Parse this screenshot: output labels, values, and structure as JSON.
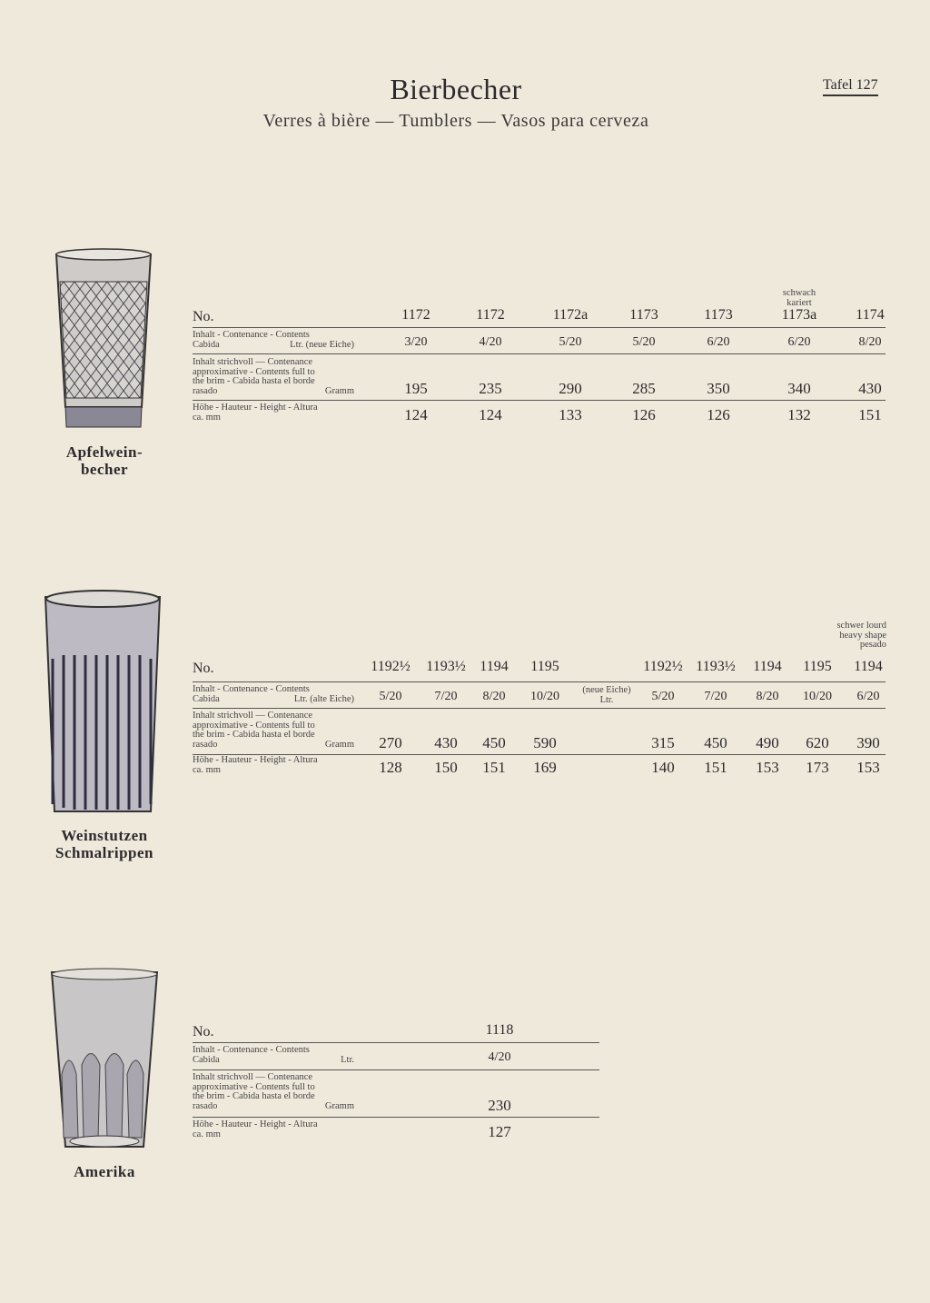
{
  "header": {
    "title": "Bierbecher",
    "subtitle": "Verres à bière — Tumblers — Vasos para cerveza",
    "plate": "Tafel 127"
  },
  "row_labels": {
    "no": "No.",
    "contents_neue": [
      "Inhalt - Contenance - Contents",
      "Cabida",
      "Ltr. (neue Eiche)"
    ],
    "contents_alte": [
      "Inhalt - Contenance - Contents",
      "Cabida",
      "Ltr. (alte Eiche)"
    ],
    "contents_plain": [
      "Inhalt - Contenance - Contents",
      "Cabida",
      "Ltr."
    ],
    "brim": [
      "Inhalt strichvoll — Contenance",
      "approximative - Contents full to",
      "the brim - Cabida hasta el borde",
      "rasado",
      "Gramm"
    ],
    "height": [
      "Höhe - Hauteur - Height - Altura",
      "ca. mm"
    ]
  },
  "sections": [
    {
      "caption": [
        "Apfelwein-",
        "becher"
      ],
      "glass_icon": "diamond-cut-tumbler",
      "columns": [
        {
          "no": "1172",
          "contents": "3/20",
          "brim_g": "195",
          "height_mm": "124"
        },
        {
          "no": "1172",
          "contents": "4/20",
          "brim_g": "235",
          "height_mm": "124"
        },
        {
          "no": "1172a",
          "contents": "5/20",
          "brim_g": "290",
          "height_mm": "133"
        },
        {
          "no": "1173",
          "contents": "5/20",
          "brim_g": "285",
          "height_mm": "126"
        },
        {
          "no": "1173",
          "contents": "6/20",
          "brim_g": "350",
          "height_mm": "126"
        },
        {
          "no": "1173a",
          "note": "schwach kariert",
          "contents": "6/20",
          "brim_g": "340",
          "height_mm": "132"
        },
        {
          "no": "1174",
          "contents": "8/20",
          "brim_g": "430",
          "height_mm": "151"
        }
      ]
    },
    {
      "caption": [
        "Weinstutzen",
        "Schmalrippen"
      ],
      "glass_icon": "ribbed-tumbler",
      "mid_label": [
        "(neue Eiche)",
        "Ltr."
      ],
      "columns": [
        {
          "no": "1192½",
          "contents": "5/20",
          "brim_g": "270",
          "height_mm": "128"
        },
        {
          "no": "1193½",
          "contents": "7/20",
          "brim_g": "430",
          "height_mm": "150"
        },
        {
          "no": "1194",
          "contents": "8/20",
          "brim_g": "450",
          "height_mm": "151"
        },
        {
          "no": "1195",
          "contents": "10/20",
          "brim_g": "590",
          "height_mm": "169"
        },
        {
          "no": "1192½",
          "contents": "5/20",
          "brim_g": "315",
          "height_mm": "140"
        },
        {
          "no": "1193½",
          "contents": "7/20",
          "brim_g": "450",
          "height_mm": "151"
        },
        {
          "no": "1194",
          "contents": "8/20",
          "brim_g": "490",
          "height_mm": "153"
        },
        {
          "no": "1195",
          "contents": "10/20",
          "brim_g": "620",
          "height_mm": "173"
        },
        {
          "no": "1194",
          "note": "schwer lourd heavy shape pesado",
          "contents": "6/20",
          "brim_g": "390",
          "height_mm": "153"
        }
      ]
    },
    {
      "caption": [
        "Amerika"
      ],
      "glass_icon": "panel-cut-tumbler",
      "columns": [
        {
          "no": "1118",
          "contents": "4/20",
          "brim_g": "230",
          "height_mm": "127"
        }
      ]
    }
  ]
}
